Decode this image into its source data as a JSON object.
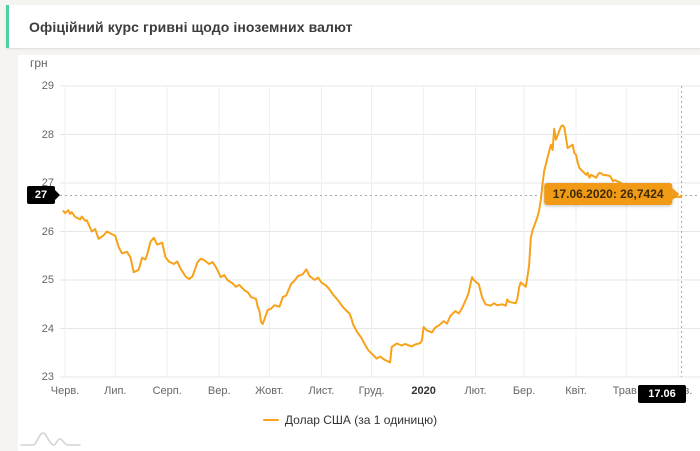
{
  "page": {
    "title": "Офіційний курс гривні щодо іноземних валют"
  },
  "colors": {
    "accent_green": "#4ed0a0",
    "series_orange": "#f7a21b",
    "tooltip_bg": "#f09a16",
    "grid": "#e7e7e7",
    "axis_text": "#666666",
    "crosshair": "#a8a8a8",
    "badge_bg": "#000000"
  },
  "chart_data": {
    "type": "line",
    "title": "Офіційний курс гривні щодо іноземних валют",
    "unit_label": "грн",
    "ylabel": "грн",
    "ylim": [
      23,
      29
    ],
    "y_ticks": [
      29,
      28,
      27,
      26,
      25,
      24,
      23
    ],
    "grid": true,
    "x_domain": [
      "2019-06-12",
      "2020-06-28"
    ],
    "x_tick_dates": [
      "2019-06-15",
      "2019-07-15",
      "2019-08-15",
      "2019-09-15",
      "2019-10-15",
      "2019-11-15",
      "2019-12-15",
      "2020-01-15",
      "2020-02-15",
      "2020-03-15",
      "2020-04-15",
      "2020-05-15",
      "2020-06-15"
    ],
    "x_ticks": [
      {
        "label": "Черв.",
        "emphasis": false
      },
      {
        "label": "Лип.",
        "emphasis": false
      },
      {
        "label": "Серп.",
        "emphasis": false
      },
      {
        "label": "Вер.",
        "emphasis": false
      },
      {
        "label": "Жовт.",
        "emphasis": false
      },
      {
        "label": "Лист.",
        "emphasis": false
      },
      {
        "label": "Груд.",
        "emphasis": false
      },
      {
        "label": "2020",
        "emphasis": true
      },
      {
        "label": "Лют.",
        "emphasis": false
      },
      {
        "label": "Бер.",
        "emphasis": false
      },
      {
        "label": "Квіт.",
        "emphasis": false
      },
      {
        "label": "Трав.",
        "emphasis": false
      },
      {
        "label": "Черв.",
        "emphasis": false
      }
    ],
    "legend": {
      "position": "bottom",
      "series_label": "Долар США (за 1 одиницю)"
    },
    "crosshair": {
      "date": "2020-06-17",
      "value": 26.7424,
      "y_axis_label": "27",
      "x_axis_label": "17.06",
      "tooltip": "17.06.2020: 26,7424"
    },
    "series": [
      {
        "name": "Долар США (за 1 одиницю)",
        "color": "#f7a21b",
        "points": [
          [
            "2019-06-14",
            26.42
          ],
          [
            "2019-06-15",
            26.38
          ],
          [
            "2019-06-17",
            26.44
          ],
          [
            "2019-06-18",
            26.36
          ],
          [
            "2019-06-19",
            26.4
          ],
          [
            "2019-06-21",
            26.3
          ],
          [
            "2019-06-24",
            26.25
          ],
          [
            "2019-06-25",
            26.31
          ],
          [
            "2019-06-27",
            26.22
          ],
          [
            "2019-06-28",
            26.23
          ],
          [
            "2019-07-01",
            26.0
          ],
          [
            "2019-07-03",
            26.05
          ],
          [
            "2019-07-05",
            25.85
          ],
          [
            "2019-07-08",
            25.92
          ],
          [
            "2019-07-10",
            26.0
          ],
          [
            "2019-07-12",
            25.96
          ],
          [
            "2019-07-15",
            25.91
          ],
          [
            "2019-07-17",
            25.68
          ],
          [
            "2019-07-19",
            25.55
          ],
          [
            "2019-07-22",
            25.58
          ],
          [
            "2019-07-24",
            25.47
          ],
          [
            "2019-07-26",
            25.16
          ],
          [
            "2019-07-29",
            25.21
          ],
          [
            "2019-07-31",
            25.46
          ],
          [
            "2019-08-02",
            25.42
          ],
          [
            "2019-08-03",
            25.52
          ],
          [
            "2019-08-05",
            25.79
          ],
          [
            "2019-08-07",
            25.87
          ],
          [
            "2019-08-09",
            25.73
          ],
          [
            "2019-08-12",
            25.77
          ],
          [
            "2019-08-14",
            25.47
          ],
          [
            "2019-08-16",
            25.38
          ],
          [
            "2019-08-19",
            25.33
          ],
          [
            "2019-08-21",
            25.38
          ],
          [
            "2019-08-23",
            25.23
          ],
          [
            "2019-08-26",
            25.07
          ],
          [
            "2019-08-28",
            25.02
          ],
          [
            "2019-08-30",
            25.07
          ],
          [
            "2019-09-02",
            25.36
          ],
          [
            "2019-09-04",
            25.44
          ],
          [
            "2019-09-06",
            25.41
          ],
          [
            "2019-09-09",
            25.33
          ],
          [
            "2019-09-11",
            25.37
          ],
          [
            "2019-09-13",
            25.27
          ],
          [
            "2019-09-16",
            25.06
          ],
          [
            "2019-09-18",
            25.1
          ],
          [
            "2019-09-20",
            25.0
          ],
          [
            "2019-09-23",
            24.93
          ],
          [
            "2019-09-25",
            24.86
          ],
          [
            "2019-09-27",
            24.9
          ],
          [
            "2019-09-30",
            24.79
          ],
          [
            "2019-10-02",
            24.75
          ],
          [
            "2019-10-04",
            24.65
          ],
          [
            "2019-10-07",
            24.61
          ],
          [
            "2019-10-08",
            24.45
          ],
          [
            "2019-10-09",
            24.37
          ],
          [
            "2019-10-10",
            24.14
          ],
          [
            "2019-10-11",
            24.09
          ],
          [
            "2019-10-14",
            24.38
          ],
          [
            "2019-10-16",
            24.41
          ],
          [
            "2019-10-18",
            24.48
          ],
          [
            "2019-10-21",
            24.45
          ],
          [
            "2019-10-23",
            24.65
          ],
          [
            "2019-10-25",
            24.68
          ],
          [
            "2019-10-28",
            24.92
          ],
          [
            "2019-10-30",
            24.99
          ],
          [
            "2019-11-01",
            25.08
          ],
          [
            "2019-11-04",
            25.12
          ],
          [
            "2019-11-06",
            25.22
          ],
          [
            "2019-11-08",
            25.08
          ],
          [
            "2019-11-11",
            25.0
          ],
          [
            "2019-11-13",
            25.05
          ],
          [
            "2019-11-15",
            24.95
          ],
          [
            "2019-11-18",
            24.88
          ],
          [
            "2019-11-20",
            24.8
          ],
          [
            "2019-11-22",
            24.7
          ],
          [
            "2019-11-25",
            24.58
          ],
          [
            "2019-11-27",
            24.48
          ],
          [
            "2019-11-29",
            24.4
          ],
          [
            "2019-12-02",
            24.3
          ],
          [
            "2019-12-03",
            24.2
          ],
          [
            "2019-12-04",
            24.08
          ],
          [
            "2019-12-06",
            23.95
          ],
          [
            "2019-12-09",
            23.8
          ],
          [
            "2019-12-11",
            23.67
          ],
          [
            "2019-12-13",
            23.55
          ],
          [
            "2019-12-16",
            23.45
          ],
          [
            "2019-12-18",
            23.38
          ],
          [
            "2019-12-20",
            23.42
          ],
          [
            "2019-12-23",
            23.35
          ],
          [
            "2019-12-26",
            23.3
          ],
          [
            "2019-12-27",
            23.62
          ],
          [
            "2019-12-30",
            23.69
          ],
          [
            "2020-01-02",
            23.65
          ],
          [
            "2020-01-04",
            23.68
          ],
          [
            "2020-01-08",
            23.63
          ],
          [
            "2020-01-10",
            23.67
          ],
          [
            "2020-01-13",
            23.7
          ],
          [
            "2020-01-14",
            23.75
          ],
          [
            "2020-01-15",
            24.03
          ],
          [
            "2020-01-17",
            23.96
          ],
          [
            "2020-01-20",
            23.92
          ],
          [
            "2020-01-22",
            24.02
          ],
          [
            "2020-01-24",
            24.06
          ],
          [
            "2020-01-27",
            24.15
          ],
          [
            "2020-01-29",
            24.1
          ],
          [
            "2020-01-31",
            24.26
          ],
          [
            "2020-02-03",
            24.36
          ],
          [
            "2020-02-05",
            24.31
          ],
          [
            "2020-02-07",
            24.42
          ],
          [
            "2020-02-10",
            24.65
          ],
          [
            "2020-02-11",
            24.75
          ],
          [
            "2020-02-12",
            24.92
          ],
          [
            "2020-02-13",
            25.06
          ],
          [
            "2020-02-14",
            25.0
          ],
          [
            "2020-02-17",
            24.91
          ],
          [
            "2020-02-19",
            24.64
          ],
          [
            "2020-02-21",
            24.5
          ],
          [
            "2020-02-24",
            24.47
          ],
          [
            "2020-02-26",
            24.52
          ],
          [
            "2020-02-28",
            24.48
          ],
          [
            "2020-03-02",
            24.5
          ],
          [
            "2020-03-04",
            24.47
          ],
          [
            "2020-03-05",
            24.6
          ],
          [
            "2020-03-06",
            24.55
          ],
          [
            "2020-03-10",
            24.52
          ],
          [
            "2020-03-11",
            24.62
          ],
          [
            "2020-03-12",
            24.85
          ],
          [
            "2020-03-13",
            24.95
          ],
          [
            "2020-03-16",
            24.86
          ],
          [
            "2020-03-17",
            25.06
          ],
          [
            "2020-03-18",
            25.3
          ],
          [
            "2020-03-19",
            25.87
          ],
          [
            "2020-03-20",
            26.02
          ],
          [
            "2020-03-23",
            26.3
          ],
          [
            "2020-03-24",
            26.45
          ],
          [
            "2020-03-25",
            26.65
          ],
          [
            "2020-03-26",
            26.98
          ],
          [
            "2020-03-27",
            27.25
          ],
          [
            "2020-03-30",
            27.66
          ],
          [
            "2020-03-31",
            27.79
          ],
          [
            "2020-04-01",
            27.68
          ],
          [
            "2020-04-02",
            28.12
          ],
          [
            "2020-04-03",
            27.89
          ],
          [
            "2020-04-06",
            28.16
          ],
          [
            "2020-04-07",
            28.19
          ],
          [
            "2020-04-08",
            28.15
          ],
          [
            "2020-04-09",
            27.93
          ],
          [
            "2020-04-10",
            27.72
          ],
          [
            "2020-04-13",
            27.79
          ],
          [
            "2020-04-14",
            27.62
          ],
          [
            "2020-04-15",
            27.58
          ],
          [
            "2020-04-16",
            27.42
          ],
          [
            "2020-04-17",
            27.31
          ],
          [
            "2020-04-21",
            27.17
          ],
          [
            "2020-04-22",
            27.21
          ],
          [
            "2020-04-23",
            27.11
          ],
          [
            "2020-04-24",
            27.17
          ],
          [
            "2020-04-27",
            27.11
          ],
          [
            "2020-04-28",
            27.17
          ],
          [
            "2020-04-29",
            27.21
          ],
          [
            "2020-04-30",
            27.2
          ],
          [
            "2020-05-01",
            27.17
          ],
          [
            "2020-05-05",
            27.15
          ],
          [
            "2020-05-06",
            27.11
          ],
          [
            "2020-05-07",
            27.04
          ],
          [
            "2020-05-08",
            27.06
          ],
          [
            "2020-05-12",
            27.0
          ],
          [
            "2020-05-13",
            26.97
          ],
          [
            "2020-05-14",
            26.91
          ],
          [
            "2020-05-15",
            26.88
          ],
          [
            "2020-05-18",
            26.85
          ],
          [
            "2020-05-19",
            26.81
          ],
          [
            "2020-05-20",
            26.81
          ],
          [
            "2020-05-21",
            26.78
          ],
          [
            "2020-05-22",
            26.78
          ],
          [
            "2020-05-25",
            26.76
          ],
          [
            "2020-05-26",
            26.78
          ],
          [
            "2020-05-27",
            26.76
          ],
          [
            "2020-05-28",
            26.76
          ],
          [
            "2020-05-29",
            26.81
          ],
          [
            "2020-06-01",
            26.78
          ],
          [
            "2020-06-02",
            26.77
          ],
          [
            "2020-06-03",
            26.76
          ],
          [
            "2020-06-04",
            26.76
          ],
          [
            "2020-06-05",
            26.73
          ],
          [
            "2020-06-08",
            26.72
          ],
          [
            "2020-06-09",
            26.71
          ],
          [
            "2020-06-10",
            26.74
          ],
          [
            "2020-06-11",
            26.72
          ],
          [
            "2020-06-12",
            26.7
          ],
          [
            "2020-06-15",
            26.72
          ],
          [
            "2020-06-16",
            26.71
          ],
          [
            "2020-06-17",
            26.7424
          ]
        ]
      }
    ]
  }
}
